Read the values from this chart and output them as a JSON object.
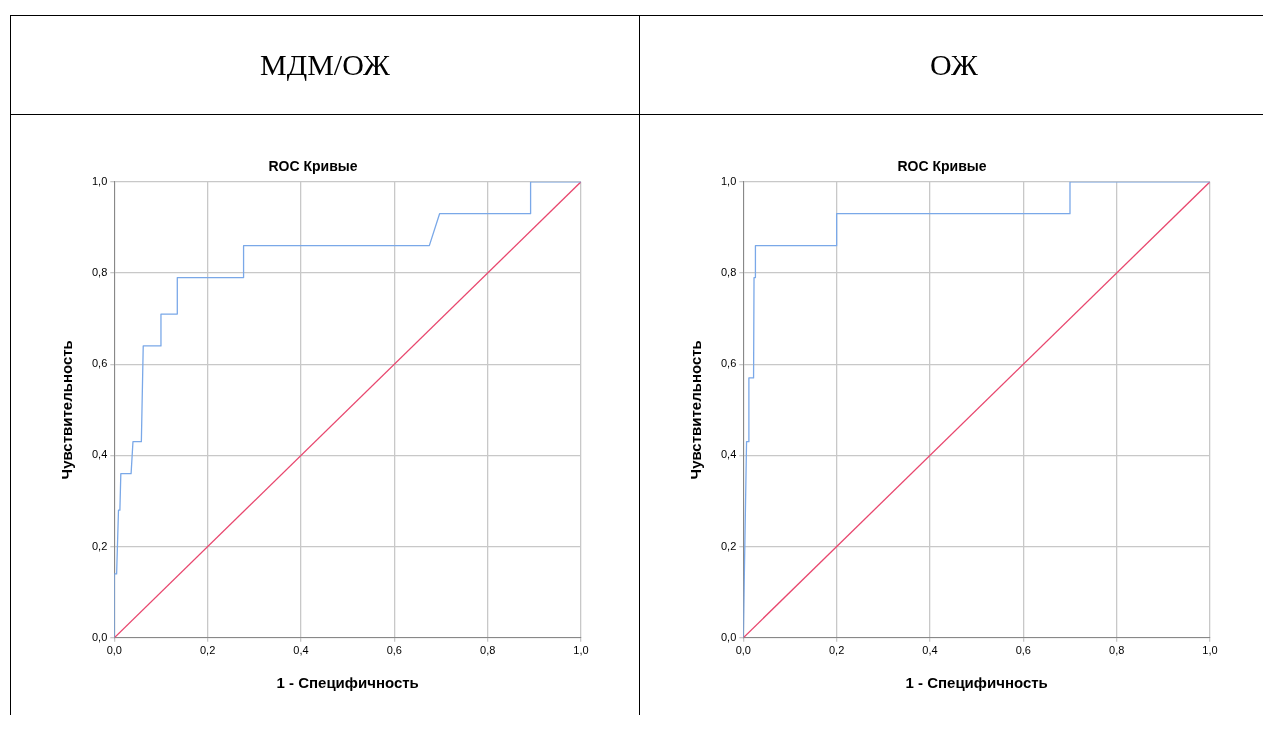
{
  "chart_data": [
    {
      "type": "line",
      "title": "МДМ/ОЖ",
      "subtitle": "ROC Кривые",
      "xlabel": "1 - Специфичность",
      "ylabel": "Чувствительность",
      "xlim": [
        0,
        1
      ],
      "ylim": [
        0,
        1
      ],
      "xticks": [
        {
          "value": 0,
          "label": "0,0"
        },
        {
          "value": 0.2,
          "label": "0,2"
        },
        {
          "value": 0.4,
          "label": "0,4"
        },
        {
          "value": 0.6,
          "label": "0,6"
        },
        {
          "value": 0.8,
          "label": "0,8"
        },
        {
          "value": 1,
          "label": "1,0"
        }
      ],
      "yticks": [
        {
          "value": 0,
          "label": "0,0"
        },
        {
          "value": 0.2,
          "label": "0,2"
        },
        {
          "value": 0.4,
          "label": "0,4"
        },
        {
          "value": 0.6,
          "label": "0,6"
        },
        {
          "value": 0.8,
          "label": "0,8"
        },
        {
          "value": 1,
          "label": "1,0"
        }
      ],
      "grid": true,
      "legend": false,
      "marker": "none",
      "line_style": "solid",
      "series": [
        {
          "color": "#7aa8e8",
          "x": [
            0,
            0,
            0.005,
            0.009,
            0.012,
            0.014,
            0.036,
            0.04,
            0.058,
            0.062,
            0.1,
            0.1,
            0.135,
            0.135,
            0.277,
            0.277,
            0.675,
            0.697,
            0.892,
            0.892,
            1
          ],
          "values": [
            0,
            0.14,
            0.14,
            0.28,
            0.28,
            0.36,
            0.36,
            0.43,
            0.43,
            0.64,
            0.64,
            0.71,
            0.71,
            0.79,
            0.79,
            0.86,
            0.86,
            0.93,
            0.93,
            1,
            1
          ]
        },
        {
          "color": "#e8476e",
          "x": [
            0,
            1
          ],
          "values": [
            0,
            1
          ]
        }
      ]
    },
    {
      "type": "line",
      "title": "ОЖ",
      "subtitle": "ROC Кривые",
      "xlabel": "1 - Специфичность",
      "ylabel": "Чувствительность",
      "xlim": [
        0,
        1
      ],
      "ylim": [
        0,
        1
      ],
      "xticks": [
        {
          "value": 0,
          "label": "0,0"
        },
        {
          "value": 0.2,
          "label": "0,2"
        },
        {
          "value": 0.4,
          "label": "0,4"
        },
        {
          "value": 0.6,
          "label": "0,6"
        },
        {
          "value": 0.8,
          "label": "0,8"
        },
        {
          "value": 1,
          "label": "1,0"
        }
      ],
      "yticks": [
        {
          "value": 0,
          "label": "0,0"
        },
        {
          "value": 0.2,
          "label": "0,2"
        },
        {
          "value": 0.4,
          "label": "0,4"
        },
        {
          "value": 0.6,
          "label": "0,6"
        },
        {
          "value": 0.8,
          "label": "0,8"
        },
        {
          "value": 1,
          "label": "1,0"
        }
      ],
      "grid": true,
      "legend": false,
      "marker": "none",
      "line_style": "solid",
      "series": [
        {
          "color": "#7aa8e8",
          "x": [
            0,
            0.007,
            0.011,
            0.012,
            0.022,
            0.023,
            0.026,
            0.026,
            0.2,
            0.2,
            0.7,
            0.7,
            1
          ],
          "values": [
            0,
            0.43,
            0.43,
            0.57,
            0.57,
            0.79,
            0.79,
            0.86,
            0.86,
            0.93,
            0.93,
            1,
            1
          ]
        },
        {
          "color": "#e8476e",
          "x": [
            0,
            1
          ],
          "values": [
            0,
            1
          ]
        }
      ]
    }
  ]
}
